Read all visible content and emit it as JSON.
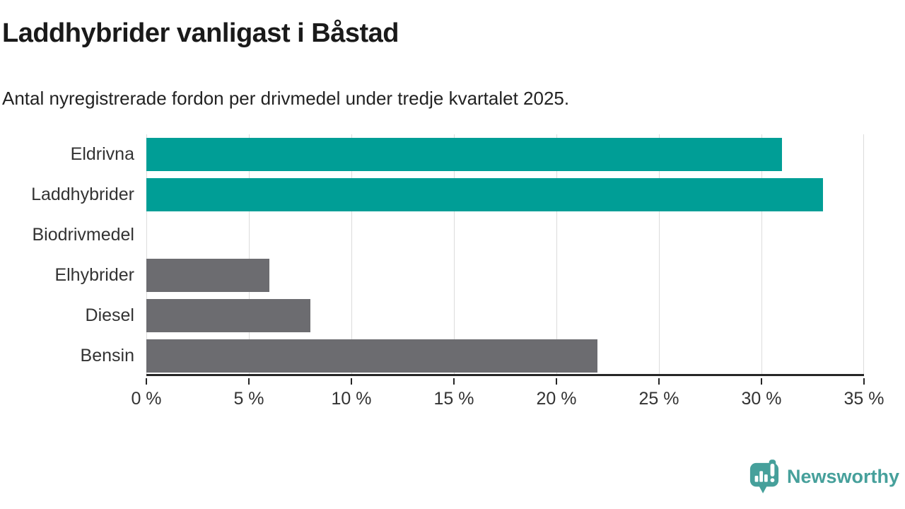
{
  "header": {
    "title": "Laddhybrider vanligast i Båstad",
    "subtitle": "Antal nyregistrerade fordon per drivmedel under tredje kvartalet 2025."
  },
  "chart_data": {
    "type": "bar",
    "orientation": "horizontal",
    "title": "Laddhybrider vanligast i Båstad",
    "subtitle": "Antal nyregistrerade fordon per drivmedel under tredje kvartalet 2025.",
    "categories": [
      "Eldrivna",
      "Laddhybrider",
      "Biodrivmedel",
      "Elhybrider",
      "Diesel",
      "Bensin"
    ],
    "values": [
      31,
      33,
      0,
      6,
      8,
      22
    ],
    "unit": "%",
    "xlim": [
      0,
      35
    ],
    "x_ticks": [
      0,
      5,
      10,
      15,
      20,
      25,
      30,
      35
    ],
    "x_tick_labels": [
      "0 %",
      "5 %",
      "10 %",
      "15 %",
      "20 %",
      "25 %",
      "30 %",
      "35 %"
    ],
    "grid": "vertical-only",
    "legend": "none",
    "highlight_color": "#009e96",
    "base_color": "#6c6c70",
    "bar_color_roles": [
      "highlight",
      "highlight",
      "base",
      "base",
      "base",
      "base"
    ]
  },
  "footer": {
    "brand": "Newsworthy",
    "brand_color": "#46a09b",
    "logo_icon": "speech-bubble-bar-chart-icon"
  }
}
